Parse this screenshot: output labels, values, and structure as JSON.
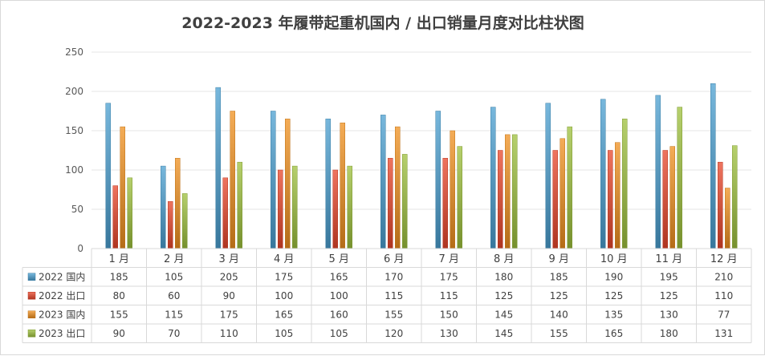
{
  "chart_data": {
    "type": "bar",
    "title": "2022-2023 年履带起重机国内 / 出口销量月度对比柱状图",
    "categories": [
      "1 月",
      "2 月",
      "3 月",
      "4 月",
      "5 月",
      "6 月",
      "7 月",
      "8 月",
      "9 月",
      "10 月",
      "11 月",
      "12 月"
    ],
    "series": [
      {
        "name": "2022 国内",
        "color": "#4a9fd0",
        "values": [
          185,
          105,
          205,
          175,
          165,
          170,
          175,
          180,
          185,
          190,
          195,
          210
        ]
      },
      {
        "name": "2022 出口",
        "color": "#e8452a",
        "values": [
          80,
          60,
          90,
          100,
          100,
          115,
          115,
          125,
          125,
          125,
          125,
          110
        ]
      },
      {
        "name": "2023 国内",
        "color": "#f0901e",
        "values": [
          155,
          115,
          175,
          165,
          160,
          155,
          150,
          145,
          140,
          135,
          130,
          77
        ]
      },
      {
        "name": "2023 出口",
        "color": "#9dc03c",
        "values": [
          90,
          70,
          110,
          105,
          105,
          120,
          130,
          145,
          155,
          165,
          180,
          131
        ]
      }
    ],
    "ylim": [
      0,
      250
    ],
    "yticks": [
      0,
      50,
      100,
      150,
      200,
      250
    ],
    "grid": true,
    "legend": "data-table"
  }
}
